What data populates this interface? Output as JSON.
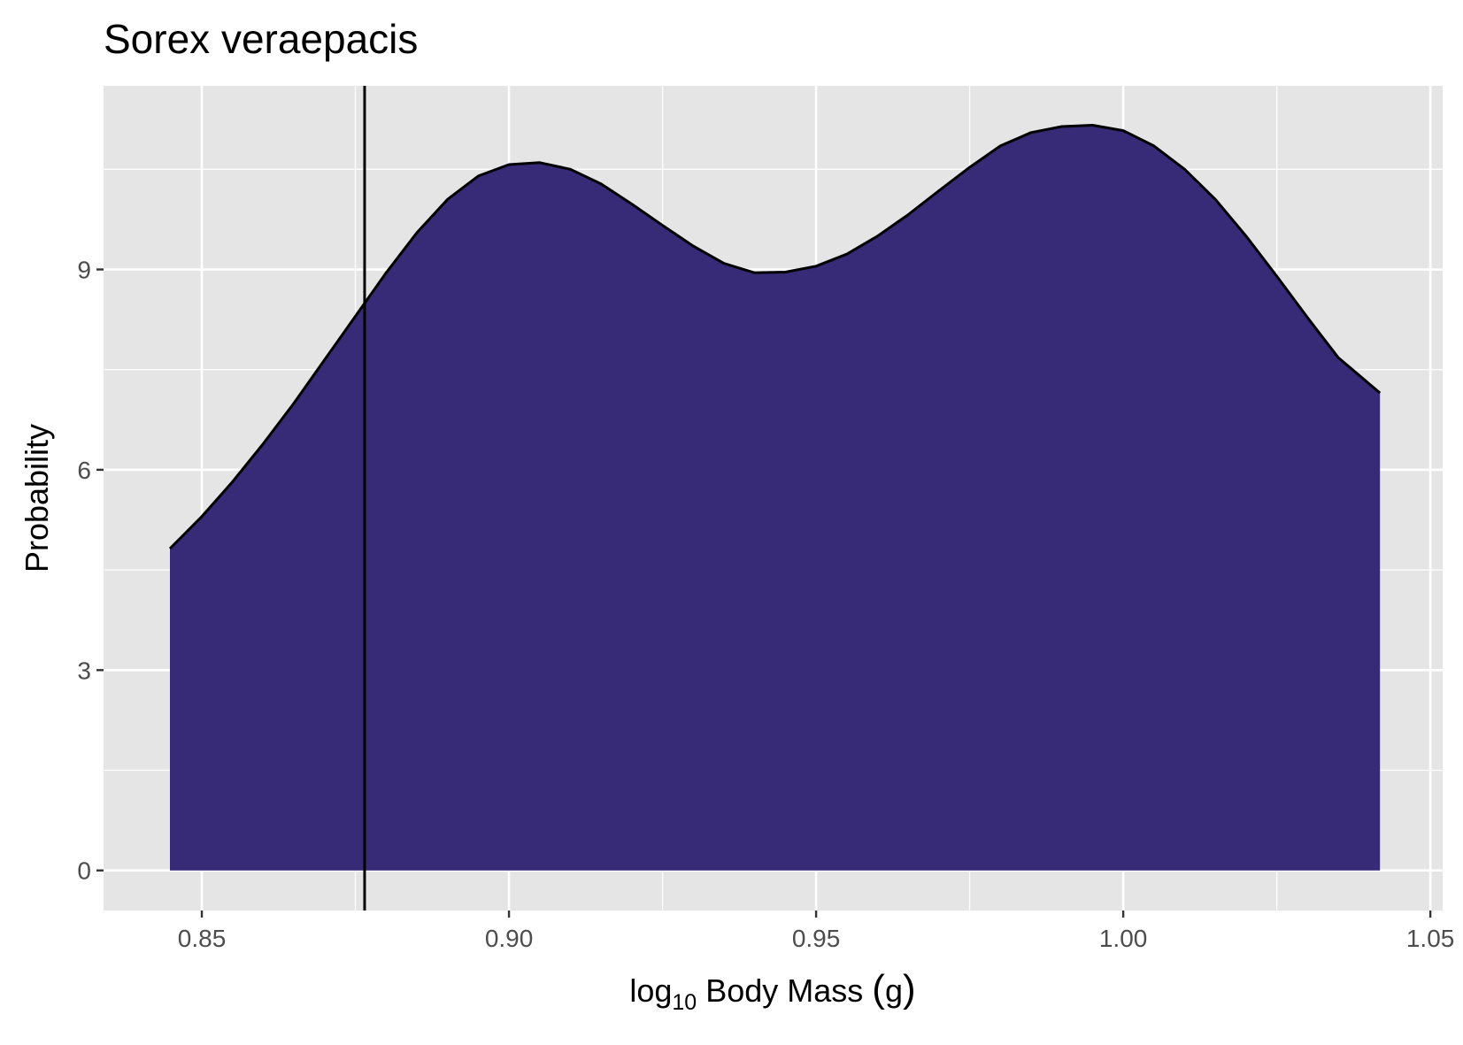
{
  "chart_data": {
    "type": "area",
    "title": "Sorex veraepacis",
    "xlabel_base": "log",
    "xlabel_sub": "10",
    "xlabel_rest": " Body Mass ",
    "xlabel_paren_open": "(",
    "xlabel_unit": "g",
    "xlabel_paren_close": ")",
    "ylabel": "Probability",
    "xlim": [
      0.834,
      1.052
    ],
    "ylim": [
      -0.6,
      11.75
    ],
    "x_ticks": [
      0.85,
      0.9,
      0.95,
      1.0,
      1.05
    ],
    "x_tick_labels": [
      "0.85",
      "0.90",
      "0.95",
      "1.00",
      "1.05"
    ],
    "y_ticks": [
      0,
      3,
      6,
      9
    ],
    "y_tick_labels": [
      "0",
      "3",
      "6",
      "9"
    ],
    "vline_x": 0.8765,
    "fill_color": "#372a76",
    "panel_color": "#e5e5e5",
    "grid": true,
    "density": {
      "x": [
        0.8448,
        0.85,
        0.855,
        0.86,
        0.865,
        0.87,
        0.875,
        0.88,
        0.885,
        0.89,
        0.895,
        0.9,
        0.905,
        0.91,
        0.915,
        0.92,
        0.925,
        0.93,
        0.935,
        0.94,
        0.945,
        0.95,
        0.955,
        0.96,
        0.965,
        0.97,
        0.975,
        0.98,
        0.985,
        0.99,
        0.995,
        1.0,
        1.005,
        1.01,
        1.015,
        1.02,
        1.025,
        1.03,
        1.035,
        1.0418
      ],
      "y": [
        4.82,
        5.3,
        5.82,
        6.39,
        7.0,
        7.65,
        8.3,
        8.95,
        9.55,
        10.05,
        10.4,
        10.57,
        10.6,
        10.5,
        10.28,
        9.98,
        9.66,
        9.35,
        9.09,
        8.95,
        8.96,
        9.05,
        9.23,
        9.5,
        9.82,
        10.18,
        10.53,
        10.85,
        11.05,
        11.14,
        11.16,
        11.08,
        10.85,
        10.5,
        10.05,
        9.5,
        8.9,
        8.28,
        7.68,
        7.15
      ]
    }
  }
}
